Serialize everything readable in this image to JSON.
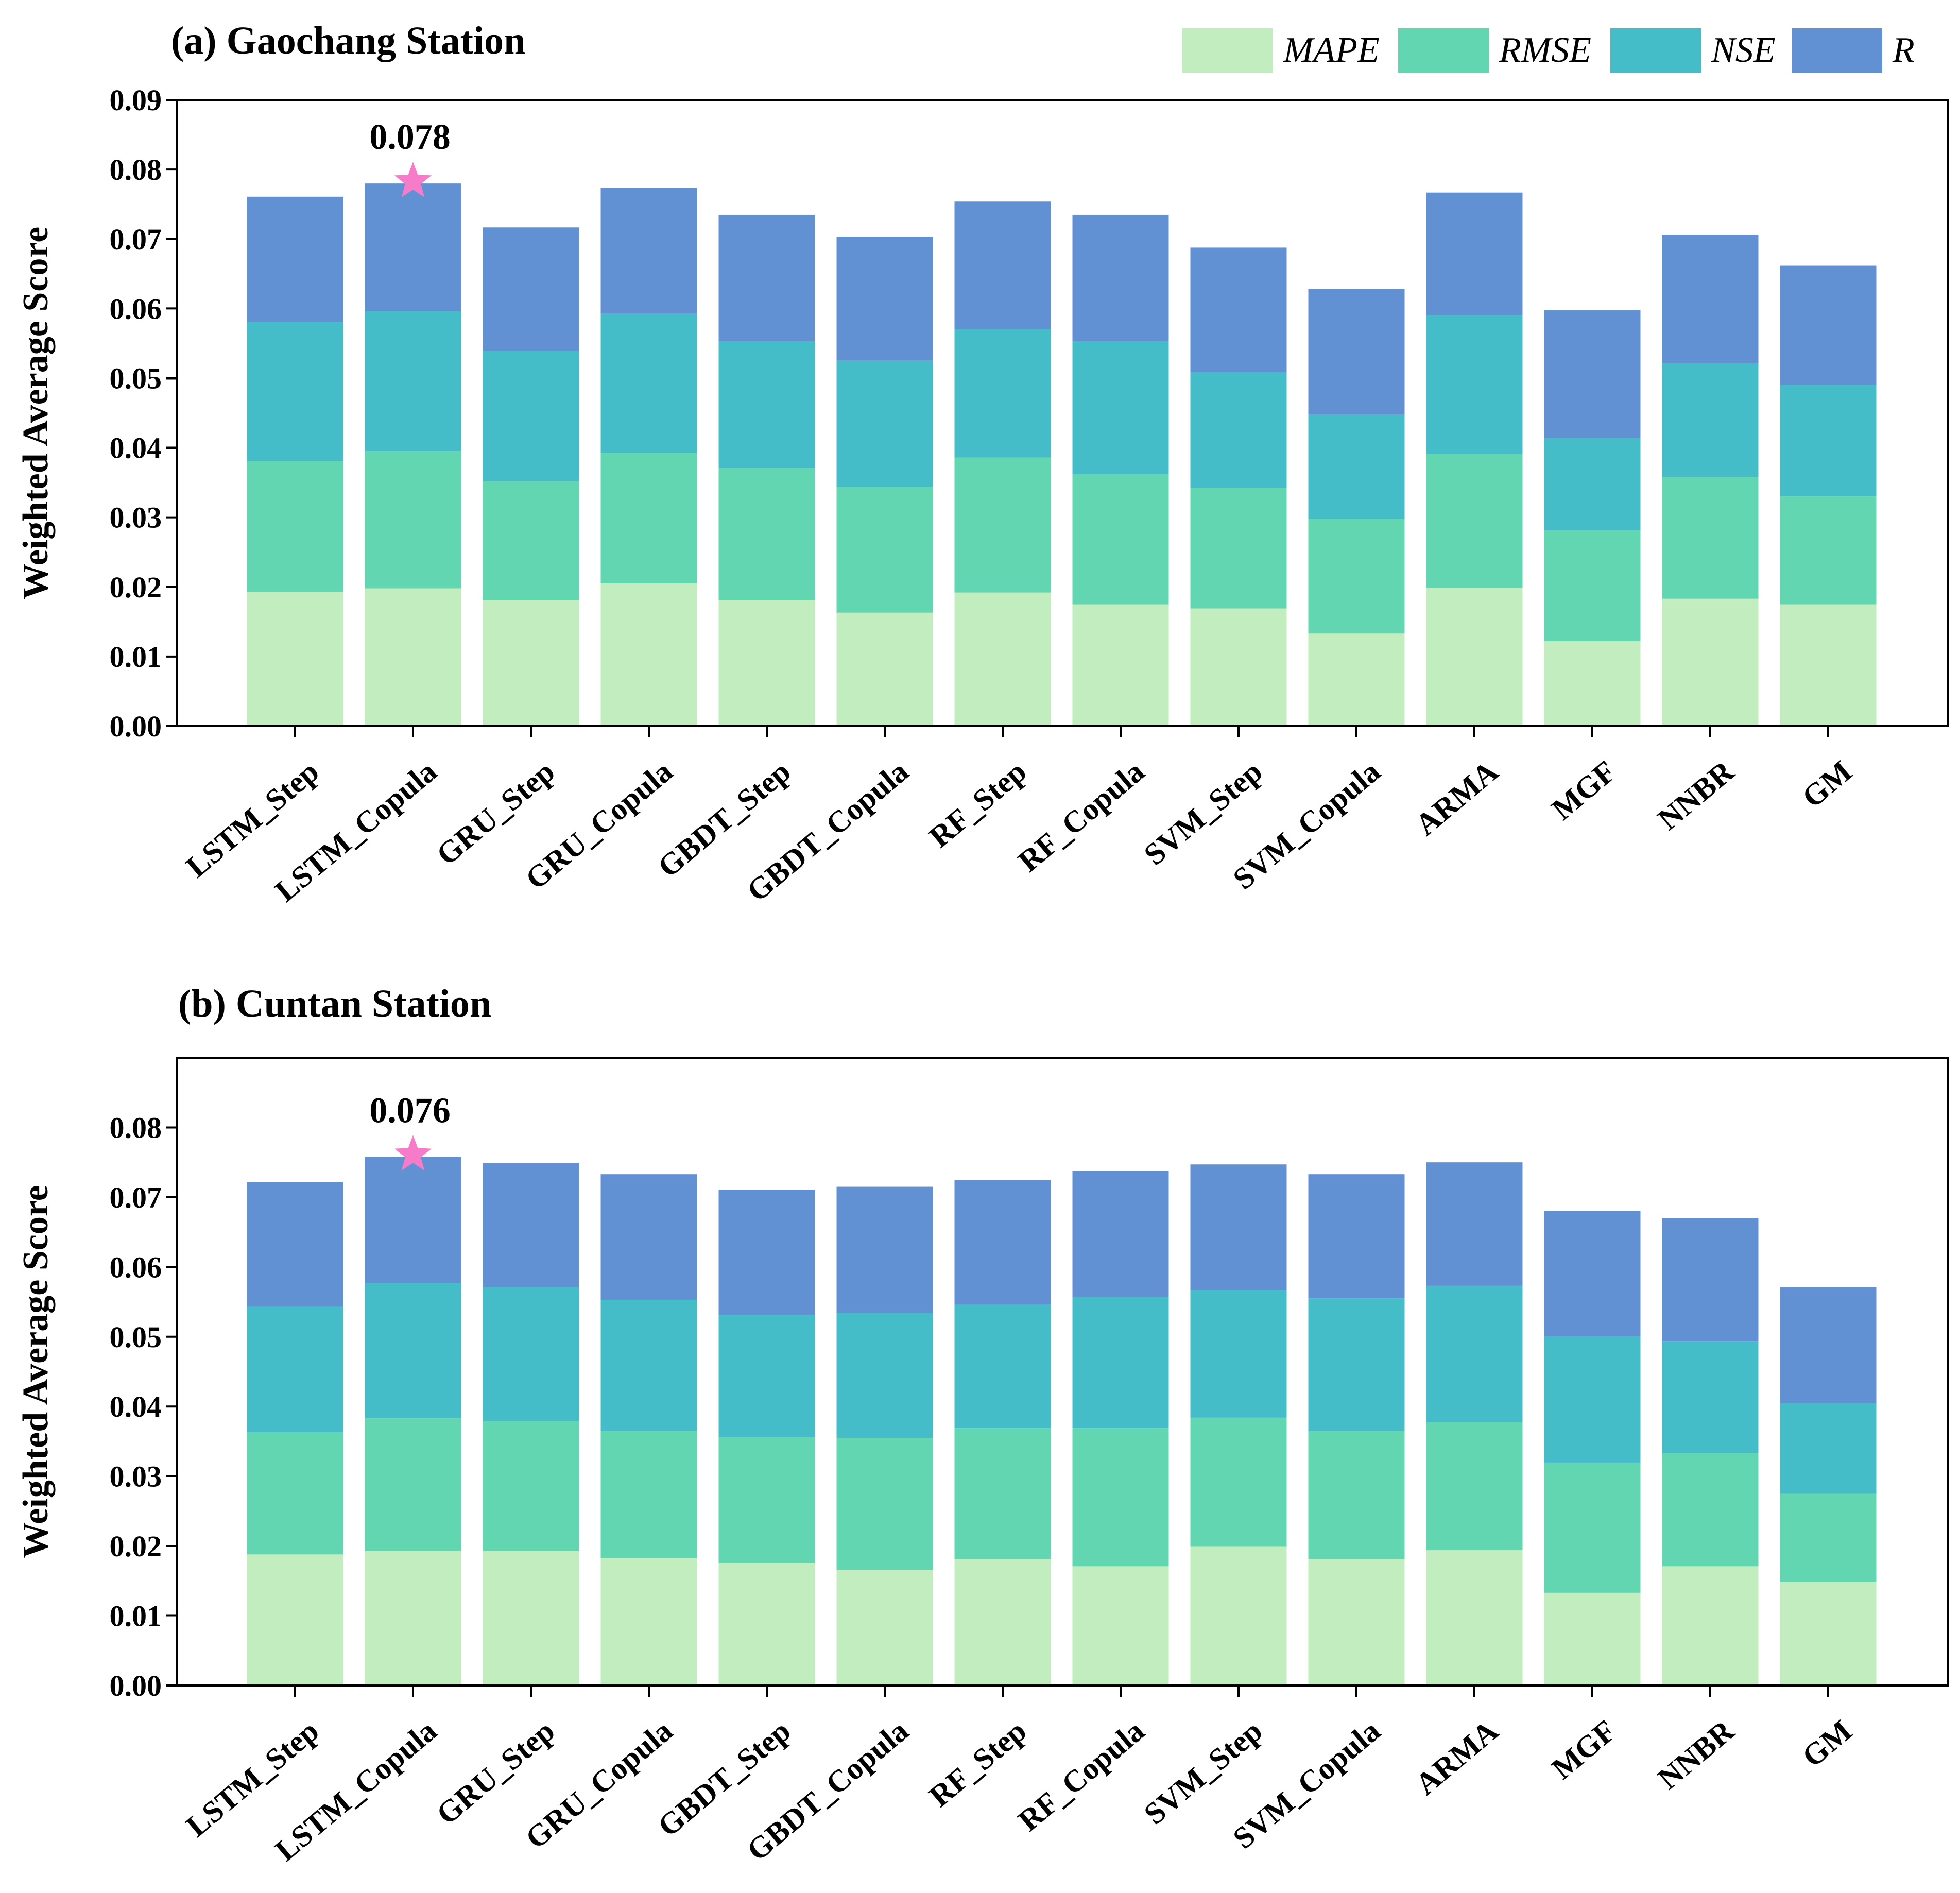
{
  "colors": {
    "MAPE": "#c1edbf",
    "RMSE": "#61d6b0",
    "NSE": "#45bdc9",
    "R": "#6291d3",
    "star": "#f67cc9",
    "axis": "#000000"
  },
  "legend": [
    "MAPE",
    "RMSE",
    "NSE",
    "R"
  ],
  "chart_data": [
    {
      "type": "bar",
      "stacked": true,
      "title": "(a) Gaochang Station",
      "ylabel": "Weighted Average Score",
      "xlabel": "",
      "ylim": [
        0,
        0.09
      ],
      "yticks": [
        "0.00",
        "0.01",
        "0.02",
        "0.03",
        "0.04",
        "0.05",
        "0.06",
        "0.07",
        "0.08",
        "0.09"
      ],
      "categories": [
        "LSTM_Step",
        "LSTM_Copula",
        "GRU_Step",
        "GRU_Copula",
        "GBDT_Step",
        "GBDT_Copula",
        "RF_Step",
        "RF_Copula",
        "SVM_Step",
        "SVM_Copula",
        "ARMA",
        "MGF",
        "NNBR",
        "GM"
      ],
      "series": [
        {
          "name": "MAPE",
          "values": [
            0.0193,
            0.0198,
            0.0181,
            0.0205,
            0.0181,
            0.0163,
            0.0192,
            0.0175,
            0.0169,
            0.0133,
            0.0199,
            0.0122,
            0.0183,
            0.0175
          ]
        },
        {
          "name": "RMSE",
          "values": [
            0.0188,
            0.0197,
            0.0171,
            0.0188,
            0.019,
            0.0181,
            0.0194,
            0.0187,
            0.0173,
            0.0165,
            0.0192,
            0.0159,
            0.0175,
            0.0155
          ]
        },
        {
          "name": "NSE",
          "values": [
            0.02,
            0.0202,
            0.0187,
            0.02,
            0.0182,
            0.0181,
            0.0185,
            0.0191,
            0.0166,
            0.015,
            0.02,
            0.0133,
            0.0164,
            0.016
          ]
        },
        {
          "name": "R",
          "values": [
            0.018,
            0.0183,
            0.0178,
            0.018,
            0.0182,
            0.0178,
            0.0183,
            0.0182,
            0.018,
            0.018,
            0.0176,
            0.0184,
            0.0184,
            0.0172
          ]
        }
      ],
      "annotation": {
        "category": "LSTM_Copula",
        "label": "0.078",
        "value": 0.078
      }
    },
    {
      "type": "bar",
      "stacked": true,
      "title": "(b) Cuntan Station",
      "ylabel": "Weighted Average Score",
      "xlabel": "",
      "ylim": [
        0,
        0.09
      ],
      "yticks": [
        "0.00",
        "0.01",
        "0.02",
        "0.03",
        "0.04",
        "0.05",
        "0.06",
        "0.07",
        "0.08"
      ],
      "categories": [
        "LSTM_Step",
        "LSTM_Copula",
        "GRU_Step",
        "GRU_Copula",
        "GBDT_Step",
        "GBDT_Copula",
        "RF_Step",
        "RF_Copula",
        "SVM_Step",
        "SVM_Copula",
        "ARMA",
        "MGF",
        "NNBR",
        "GM"
      ],
      "series": [
        {
          "name": "MAPE",
          "values": [
            0.0188,
            0.0193,
            0.0193,
            0.0183,
            0.0175,
            0.0166,
            0.0181,
            0.0171,
            0.0199,
            0.0181,
            0.0194,
            0.0133,
            0.0171,
            0.0148
          ]
        },
        {
          "name": "RMSE",
          "values": [
            0.0175,
            0.019,
            0.0186,
            0.0182,
            0.0181,
            0.0189,
            0.0188,
            0.0198,
            0.0185,
            0.0184,
            0.0184,
            0.0186,
            0.0162,
            0.0127
          ]
        },
        {
          "name": "NSE",
          "values": [
            0.018,
            0.0194,
            0.0192,
            0.0188,
            0.0175,
            0.0179,
            0.0177,
            0.0188,
            0.0183,
            0.019,
            0.0195,
            0.0181,
            0.016,
            0.013
          ]
        },
        {
          "name": "R",
          "values": [
            0.0179,
            0.0181,
            0.0178,
            0.018,
            0.018,
            0.0181,
            0.0179,
            0.0181,
            0.018,
            0.0178,
            0.0177,
            0.018,
            0.0177,
            0.0166
          ]
        }
      ],
      "annotation": {
        "category": "LSTM_Copula",
        "label": "0.076",
        "value": 0.076
      }
    }
  ]
}
